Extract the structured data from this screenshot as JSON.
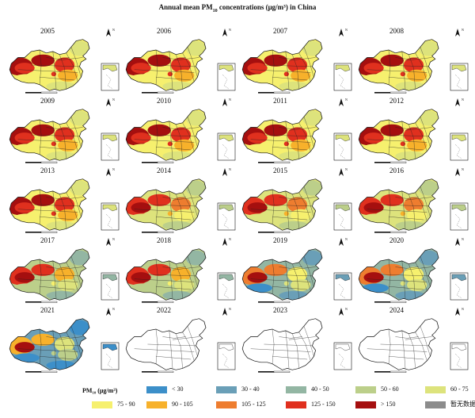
{
  "title": "Annual mean PM",
  "title_sub": "10",
  "title_suffix": " concentrations (μg/m³) in China",
  "north_label": "N",
  "panels": [
    {
      "year": "2005",
      "level": "high"
    },
    {
      "year": "2006",
      "level": "high"
    },
    {
      "year": "2007",
      "level": "high"
    },
    {
      "year": "2008",
      "level": "high"
    },
    {
      "year": "2009",
      "level": "high"
    },
    {
      "year": "2010",
      "level": "high"
    },
    {
      "year": "2011",
      "level": "high"
    },
    {
      "year": "2012",
      "level": "high"
    },
    {
      "year": "2013",
      "level": "high"
    },
    {
      "year": "2014",
      "level": "mid"
    },
    {
      "year": "2015",
      "level": "mid"
    },
    {
      "year": "2016",
      "level": "mid"
    },
    {
      "year": "2017",
      "level": "low"
    },
    {
      "year": "2018",
      "level": "low"
    },
    {
      "year": "2019",
      "level": "lower"
    },
    {
      "year": "2020",
      "level": "lower"
    },
    {
      "year": "2021",
      "level": "lowest"
    },
    {
      "year": "2022",
      "level": "empty"
    },
    {
      "year": "2023",
      "level": "empty"
    },
    {
      "year": "2024",
      "level": "empty"
    }
  ],
  "legend": {
    "title": "PM₁₀ (μg/m³)",
    "items": [
      {
        "label": "< 30",
        "color": "#3c8fc9"
      },
      {
        "label": "30 - 40",
        "color": "#6a9fb7"
      },
      {
        "label": "40 - 50",
        "color": "#93b6a3"
      },
      {
        "label": "50 - 60",
        "color": "#bccf8a"
      },
      {
        "label": "60 - 75",
        "color": "#dde37c"
      },
      {
        "label": "75 - 90",
        "color": "#f6f06e"
      },
      {
        "label": "90 - 105",
        "color": "#f7b12b"
      },
      {
        "label": "105 - 125",
        "color": "#ee7d2f"
      },
      {
        "label": "125 - 150",
        "color": "#e0301e"
      },
      {
        "label": "> 150",
        "color": "#a50f0f"
      },
      {
        "label": "暂无数据",
        "color": "#8c8c8c"
      }
    ]
  }
}
